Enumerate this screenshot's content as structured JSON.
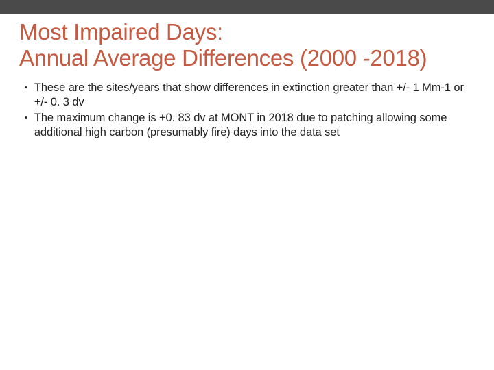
{
  "slide": {
    "top_bar_color": "#4a4a4a",
    "title_color": "#c55a42",
    "body_text_color": "#222222",
    "background_color": "#ffffff",
    "title_line1": "Most Impaired Days:",
    "title_line2": "Annual Average Differences (2000 -2018)",
    "title_fontsize": 33,
    "body_fontsize": 16.5,
    "bullets": [
      {
        "text": "These are the sites/years that show differences in extinction greater than +/- 1 Mm-1 or +/- 0. 3 dv"
      },
      {
        "text": "The maximum change is +0. 83 dv at MONT in 2018 due to patching allowing some additional high carbon (presumably fire) days into the data set"
      }
    ]
  }
}
